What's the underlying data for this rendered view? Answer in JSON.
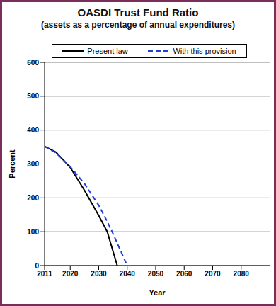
{
  "chart_data": {
    "type": "line",
    "title": "OASDI Trust Fund Ratio",
    "subtitle": "(assets as a percentage of annual expenditures)",
    "x_label": "Year",
    "y_label": "Percent",
    "x": [
      2011,
      2015,
      2020,
      2025,
      2030,
      2033,
      2035,
      2036.5,
      2038,
      2040
    ],
    "series": [
      {
        "name": "Present law",
        "color": "#000000",
        "line_style": "solid",
        "values": [
          352,
          335,
          290,
          222,
          148,
          100,
          43,
          0,
          null,
          null
        ]
      },
      {
        "name": "With this provision",
        "color": "#1f3fd1",
        "line_style": "dashed",
        "values": [
          352,
          333,
          292,
          242,
          178,
          130,
          95,
          66,
          38,
          0
        ]
      }
    ],
    "xlim": [
      2011,
      2090
    ],
    "xticks": [
      2011,
      2020,
      2030,
      2040,
      2050,
      2060,
      2070,
      2080
    ],
    "ylim": [
      0,
      600
    ],
    "yticks": [
      0,
      100,
      200,
      300,
      400,
      500,
      600
    ],
    "grid": true,
    "legend": "top"
  }
}
